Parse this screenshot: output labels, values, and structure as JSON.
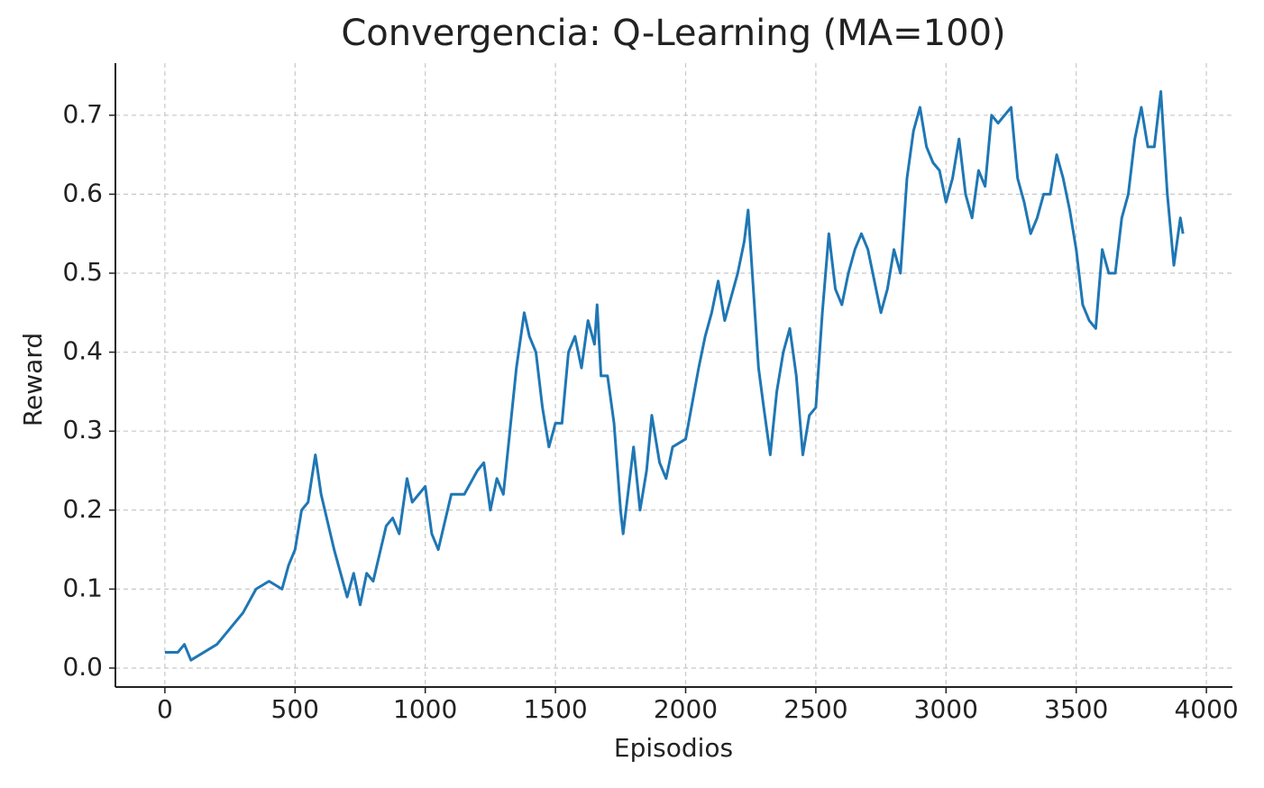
{
  "chart_data": {
    "type": "line",
    "title": "Convergencia: Q-Learning (MA=100)",
    "x_label": "Episodios",
    "y_label": "Reward",
    "x": [
      0,
      50,
      75,
      100,
      150,
      200,
      250,
      300,
      350,
      400,
      450,
      475,
      500,
      525,
      550,
      578,
      600,
      650,
      700,
      725,
      750,
      775,
      800,
      850,
      875,
      900,
      930,
      950,
      1000,
      1025,
      1050,
      1100,
      1150,
      1200,
      1225,
      1250,
      1275,
      1300,
      1325,
      1350,
      1380,
      1400,
      1425,
      1450,
      1475,
      1500,
      1525,
      1550,
      1575,
      1600,
      1625,
      1650,
      1660,
      1675,
      1700,
      1725,
      1750,
      1760,
      1800,
      1825,
      1850,
      1870,
      1900,
      1925,
      1950,
      2000,
      2050,
      2075,
      2100,
      2125,
      2150,
      2175,
      2200,
      2225,
      2240,
      2260,
      2280,
      2300,
      2325,
      2350,
      2375,
      2400,
      2425,
      2450,
      2475,
      2500,
      2525,
      2550,
      2575,
      2600,
      2625,
      2650,
      2675,
      2700,
      2725,
      2750,
      2775,
      2800,
      2825,
      2850,
      2875,
      2900,
      2925,
      2950,
      2975,
      3000,
      3025,
      3050,
      3075,
      3100,
      3125,
      3150,
      3175,
      3200,
      3225,
      3250,
      3275,
      3300,
      3325,
      3350,
      3375,
      3400,
      3425,
      3450,
      3475,
      3500,
      3525,
      3550,
      3575,
      3600,
      3625,
      3650,
      3675,
      3700,
      3725,
      3750,
      3775,
      3800,
      3825,
      3850,
      3875,
      3900,
      3910
    ],
    "series": [
      {
        "name": "MA=100",
        "color": "#1f77b4",
        "values": [
          0.02,
          0.02,
          0.03,
          0.01,
          0.02,
          0.03,
          0.05,
          0.07,
          0.1,
          0.11,
          0.1,
          0.13,
          0.15,
          0.2,
          0.21,
          0.27,
          0.22,
          0.15,
          0.09,
          0.12,
          0.08,
          0.12,
          0.11,
          0.18,
          0.19,
          0.17,
          0.24,
          0.21,
          0.23,
          0.17,
          0.15,
          0.22,
          0.22,
          0.25,
          0.26,
          0.2,
          0.24,
          0.22,
          0.3,
          0.38,
          0.45,
          0.42,
          0.4,
          0.33,
          0.28,
          0.31,
          0.31,
          0.4,
          0.42,
          0.38,
          0.44,
          0.41,
          0.46,
          0.37,
          0.37,
          0.31,
          0.2,
          0.17,
          0.28,
          0.2,
          0.25,
          0.32,
          0.26,
          0.24,
          0.28,
          0.29,
          0.38,
          0.42,
          0.45,
          0.49,
          0.44,
          0.47,
          0.5,
          0.54,
          0.58,
          0.48,
          0.38,
          0.33,
          0.27,
          0.35,
          0.4,
          0.43,
          0.37,
          0.27,
          0.32,
          0.33,
          0.45,
          0.55,
          0.48,
          0.46,
          0.5,
          0.53,
          0.55,
          0.53,
          0.49,
          0.45,
          0.48,
          0.53,
          0.5,
          0.62,
          0.68,
          0.71,
          0.66,
          0.64,
          0.63,
          0.59,
          0.62,
          0.67,
          0.6,
          0.57,
          0.63,
          0.61,
          0.7,
          0.69,
          0.7,
          0.71,
          0.62,
          0.59,
          0.55,
          0.57,
          0.6,
          0.6,
          0.65,
          0.62,
          0.58,
          0.53,
          0.46,
          0.44,
          0.43,
          0.53,
          0.5,
          0.5,
          0.57,
          0.6,
          0.67,
          0.71,
          0.66,
          0.66,
          0.73,
          0.6,
          0.51,
          0.57,
          0.55
        ]
      }
    ],
    "xlim": [
      -190,
      4100
    ],
    "ylim": [
      -0.024,
      0.766
    ],
    "xticks": [
      0,
      500,
      1000,
      1500,
      2000,
      2500,
      3000,
      3500,
      4000
    ],
    "yticks": [
      {
        "value": 0,
        "label": "0.0"
      },
      0.1,
      0.2,
      0.3,
      0.4,
      0.5,
      0.6,
      0.7
    ],
    "grid": true
  }
}
